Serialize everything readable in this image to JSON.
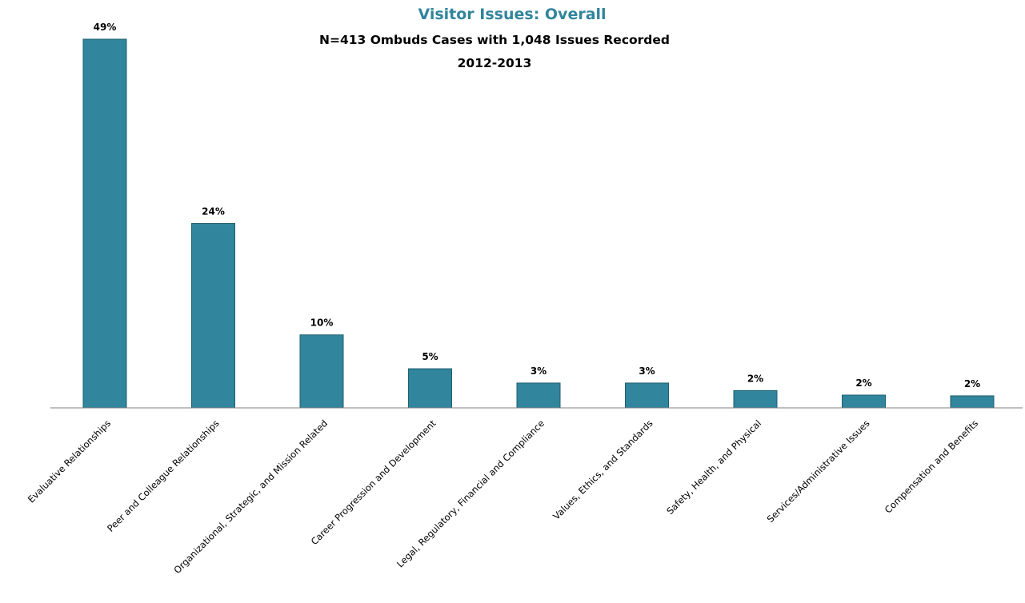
{
  "chart_data": {
    "type": "bar",
    "title": "Visitor Issues: Overall",
    "subtitle": "N=413 Ombuds Cases with 1,048 Issues Recorded",
    "subtitle2": "2012-2013",
    "xlabel": "",
    "ylabel": "",
    "grid": false,
    "ylim": [
      0,
      0.49
    ],
    "categories": [
      "Evaluative Relationships",
      "Peer and Colleague Relationships",
      "Organizational, Strategic, and Mission Related",
      "Career Progression and Development",
      "Legal, Regulatory, Financial and Compliance",
      "Values, Ethics, and Standards",
      "Safety, Health, and Physical",
      "Services/Administrative Issues",
      "Compensation and Benefits"
    ],
    "values": [
      0.49,
      0.24,
      0.1,
      0.05,
      0.03,
      0.03,
      0.02,
      0.02,
      0.02
    ],
    "bar_heights_pct": [
      49,
      24.5,
      9.7,
      5.2,
      3.3,
      3.3,
      2.3,
      1.7,
      1.6
    ],
    "data_labels": [
      "49%",
      "24%",
      "10%",
      "5%",
      "3%",
      "3%",
      "2%",
      "2%",
      "2%"
    ],
    "colors": {
      "bar": "#31859c",
      "bar_stroke": "#1f5f70",
      "title": "#31859c",
      "axis": "#7f7f7f"
    }
  }
}
